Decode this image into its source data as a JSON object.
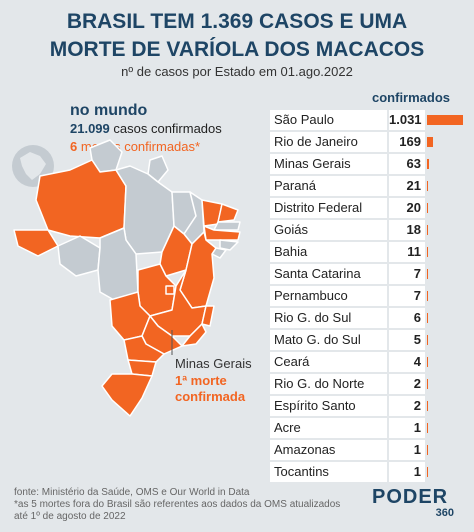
{
  "title_line1": "BRASIL TEM 1.369 CASOS E UMA",
  "title_line2": "MORTE DE VARÍOLA DOS MACACOS",
  "subtitle": "nº de casos por Estado em 01.ago.2022",
  "world": {
    "heading": "no mundo",
    "cases_value": "21.099",
    "cases_text": "casos confirmados",
    "deaths_value": "6",
    "deaths_text": "mortes confirmadas*"
  },
  "map": {
    "annotation_state": "Minas Gerais",
    "annotation_death": "1ª morte confirmada",
    "colors": {
      "with_cases": "#f26522",
      "no_cases": "#c4cbd1",
      "border": "#ffffff",
      "globe": "#c4cbd1"
    }
  },
  "chart_data": {
    "type": "bar",
    "column_header": "confirmados",
    "categories": [
      "São Paulo",
      "Rio de Janeiro",
      "Minas Gerais",
      "Paraná",
      "Distrito Federal",
      "Goiás",
      "Bahia",
      "Santa Catarina",
      "Pernambuco",
      "Rio G. do Sul",
      "Mato G. do Sul",
      "Ceará",
      "Rio G. do Norte",
      "Espírito Santo",
      "Acre",
      "Amazonas",
      "Tocantins"
    ],
    "labels": [
      "1.031",
      "169",
      "63",
      "21",
      "20",
      "18",
      "11",
      "7",
      "7",
      "6",
      "5",
      "4",
      "2",
      "2",
      "1",
      "1",
      "1"
    ],
    "values": [
      1031,
      169,
      63,
      21,
      20,
      18,
      11,
      7,
      7,
      6,
      5,
      4,
      2,
      2,
      1,
      1,
      1
    ],
    "bar_color": "#f26522"
  },
  "footer": {
    "line1": "fonte: Ministério da Saúde, OMS e Our World in Data",
    "line2": "*as 5 mortes fora do Brasil são referentes aos dados da OMS atualizados",
    "line3": "até 1º de agosto de 2022"
  },
  "logo": {
    "name": "PODER",
    "number": "360"
  }
}
